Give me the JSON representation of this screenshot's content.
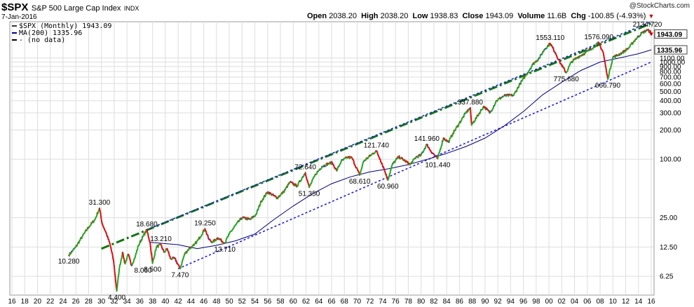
{
  "header": {
    "symbol": "$SPX",
    "name": "S&P 500 Large Cap Index",
    "exchange": "INDX",
    "date": "7-Jan-2016",
    "copyright": "@StockCharts.com",
    "ohlc": {
      "open_label": "Open",
      "open": "2038.20",
      "high_label": "High",
      "high": "2038.20",
      "low_label": "Low",
      "low": "1938.83",
      "close_label": "Close",
      "close": "1943.09",
      "volume_label": "Volume",
      "volume": "11.6B",
      "chg_label": "Chg",
      "chg": "-100.85 (-4.93%)"
    }
  },
  "legend": [
    {
      "label": "$SPX (Monthly) 1943.09",
      "color": "#333333"
    },
    {
      "label": "MA(200) 1335.96",
      "color": "#000080"
    },
    {
      "label": "- (no data)",
      "color": "#000000"
    }
  ],
  "chart_data": {
    "type": "line",
    "scale": "log",
    "ylim": [
      4,
      2600
    ],
    "xlim": [
      1916,
      2016
    ],
    "y_ticks": [
      {
        "value": 6.25,
        "label": "6.25"
      },
      {
        "value": 12.5,
        "label": "12.50"
      },
      {
        "value": 25,
        "label": "25.00"
      },
      {
        "value": 100,
        "label": "100.00"
      },
      {
        "value": 200,
        "label": "200.00"
      },
      {
        "value": 300,
        "label": "300.00"
      },
      {
        "value": 400,
        "label": "400.00"
      },
      {
        "value": 500,
        "label": "500.00"
      },
      {
        "value": 600,
        "label": "600.00"
      },
      {
        "value": 700,
        "label": "700.00"
      },
      {
        "value": 800,
        "label": "800.00"
      },
      {
        "value": 900,
        "label": "900.00"
      },
      {
        "value": 1000,
        "label": "1000.00"
      },
      {
        "value": 1100,
        "label": "1100.00"
      }
    ],
    "price_labels": [
      {
        "value": 1943.09,
        "label": "1943.09"
      },
      {
        "value": 1335.96,
        "label": "1335.96"
      }
    ],
    "x_ticks": [
      "16",
      "18",
      "20",
      "22",
      "24",
      "26",
      "28",
      "30",
      "32",
      "34",
      "36",
      "38",
      "40",
      "42",
      "44",
      "46",
      "48",
      "50",
      "52",
      "54",
      "56",
      "58",
      "60",
      "62",
      "64",
      "66",
      "68",
      "70",
      "72",
      "74",
      "76",
      "78",
      "80",
      "82",
      "84",
      "86",
      "88",
      "90",
      "92",
      "94",
      "96",
      "98",
      "00",
      "02",
      "04",
      "06",
      "08",
      "10",
      "12",
      "14",
      "16"
    ],
    "series": [
      {
        "type": "price",
        "points": [
          [
            1924.9,
            10.28
          ],
          [
            1926.0,
            12.5
          ],
          [
            1927.0,
            16
          ],
          [
            1928.0,
            20
          ],
          [
            1929.0,
            24
          ],
          [
            1929.7,
            31.3
          ],
          [
            1930.1,
            22
          ],
          [
            1930.8,
            17
          ],
          [
            1931.4,
            13
          ],
          [
            1931.9,
            9
          ],
          [
            1932.4,
            4.4
          ],
          [
            1932.8,
            7.5
          ],
          [
            1933.3,
            11
          ],
          [
            1933.7,
            8.4
          ],
          [
            1934.2,
            10.5
          ],
          [
            1934.7,
            8.06
          ],
          [
            1935.3,
            10
          ],
          [
            1935.8,
            13
          ],
          [
            1936.5,
            16
          ],
          [
            1937.1,
            18.68
          ],
          [
            1937.6,
            14
          ],
          [
            1938.0,
            8.5
          ],
          [
            1938.6,
            12.5
          ],
          [
            1939.3,
            13.21
          ],
          [
            1939.8,
            11
          ],
          [
            1940.3,
            12
          ],
          [
            1940.8,
            9.5
          ],
          [
            1941.5,
            9.5
          ],
          [
            1942.3,
            7.47
          ],
          [
            1943.0,
            10.5
          ],
          [
            1943.7,
            12
          ],
          [
            1944.5,
            13
          ],
          [
            1945.2,
            15
          ],
          [
            1946.2,
            19.25
          ],
          [
            1946.8,
            15
          ],
          [
            1947.4,
            14
          ],
          [
            1948.2,
            15.5
          ],
          [
            1949.3,
            13.71
          ],
          [
            1950.0,
            17
          ],
          [
            1951.0,
            21
          ],
          [
            1952.0,
            25
          ],
          [
            1953.3,
            24
          ],
          [
            1954.2,
            27
          ],
          [
            1955.0,
            37
          ],
          [
            1956.0,
            46
          ],
          [
            1957.5,
            40
          ],
          [
            1958.5,
            46
          ],
          [
            1959.5,
            58
          ],
          [
            1960.6,
            53
          ],
          [
            1961.5,
            66
          ],
          [
            1961.9,
            72.64
          ],
          [
            1962.5,
            51.35
          ],
          [
            1963.5,
            70
          ],
          [
            1964.5,
            84
          ],
          [
            1965.5,
            90
          ],
          [
            1966.1,
            92
          ],
          [
            1966.8,
            76
          ],
          [
            1967.5,
            95
          ],
          [
            1968.5,
            105
          ],
          [
            1969.2,
            103
          ],
          [
            1970.4,
            68.61
          ],
          [
            1971.0,
            95
          ],
          [
            1972.0,
            108
          ],
          [
            1973.0,
            121.74
          ],
          [
            1973.6,
            100
          ],
          [
            1974.2,
            80
          ],
          [
            1974.8,
            60.96
          ],
          [
            1975.5,
            88
          ],
          [
            1976.5,
            106
          ],
          [
            1977.5,
            96
          ],
          [
            1978.3,
            88
          ],
          [
            1979.2,
            105
          ],
          [
            1980.0,
            110
          ],
          [
            1980.9,
            141.96
          ],
          [
            1981.5,
            122
          ],
          [
            1982.6,
            101.44
          ],
          [
            1983.5,
            165
          ],
          [
            1984.3,
            150
          ],
          [
            1985.0,
            185
          ],
          [
            1986.0,
            235
          ],
          [
            1987.0,
            300
          ],
          [
            1987.7,
            337.88
          ],
          [
            1987.9,
            225
          ],
          [
            1988.7,
            270
          ],
          [
            1989.8,
            350
          ],
          [
            1990.8,
            300
          ],
          [
            1991.8,
            400
          ],
          [
            1993.0,
            450
          ],
          [
            1994.5,
            455
          ],
          [
            1995.5,
            600
          ],
          [
            1996.5,
            750
          ],
          [
            1997.5,
            950
          ],
          [
            1998.5,
            1100
          ],
          [
            1999.3,
            1350
          ],
          [
            2000.2,
            1553.11
          ],
          [
            2001.0,
            1250
          ],
          [
            2001.7,
            1000
          ],
          [
            2002.7,
            775.68
          ],
          [
            2003.5,
            1000
          ],
          [
            2004.5,
            1120
          ],
          [
            2005.5,
            1220
          ],
          [
            2006.5,
            1350
          ],
          [
            2007.8,
            1576.09
          ],
          [
            2008.5,
            1250
          ],
          [
            2009.2,
            666.79
          ],
          [
            2010.0,
            1120
          ],
          [
            2010.8,
            1180
          ],
          [
            2011.5,
            1250
          ],
          [
            2012.5,
            1400
          ],
          [
            2013.5,
            1700
          ],
          [
            2014.5,
            1980
          ],
          [
            2015.4,
            2134.72
          ],
          [
            2015.9,
            2043
          ],
          [
            2016.0,
            1943.09
          ]
        ]
      },
      {
        "name": "MA(200)",
        "points": [
          [
            1937.5,
            14
          ],
          [
            1942.0,
            13.2
          ],
          [
            1945.0,
            12
          ],
          [
            1948.0,
            13
          ],
          [
            1951.0,
            14.5
          ],
          [
            1954.0,
            17
          ],
          [
            1957.0,
            24
          ],
          [
            1960.0,
            33
          ],
          [
            1963.0,
            44
          ],
          [
            1966.0,
            56
          ],
          [
            1969.0,
            66
          ],
          [
            1972.0,
            74
          ],
          [
            1975.0,
            80
          ],
          [
            1978.0,
            88
          ],
          [
            1981.0,
            100
          ],
          [
            1984.0,
            115
          ],
          [
            1987.0,
            135
          ],
          [
            1990.0,
            165
          ],
          [
            1993.0,
            220
          ],
          [
            1996.0,
            310
          ],
          [
            1999.0,
            460
          ],
          [
            2002.0,
            620
          ],
          [
            2005.0,
            820
          ],
          [
            2008.0,
            1000
          ],
          [
            2011.0,
            1100
          ],
          [
            2014.0,
            1220
          ],
          [
            2016.0,
            1335.96
          ]
        ]
      }
    ],
    "trendlines": [
      {
        "style": "green-dash-dot",
        "from": [
          1930,
          12
        ],
        "to": [
          2016,
          2500
        ]
      },
      {
        "style": "blue-dotted",
        "from": [
          1937,
          18.68
        ],
        "to": [
          2016,
          2600
        ]
      },
      {
        "style": "blue-dotted",
        "from": [
          1942,
          7.47
        ],
        "to": [
          2016,
          1000
        ]
      }
    ],
    "annotations": [
      {
        "x": 1924.9,
        "y": 10.28,
        "label": "10.280",
        "pos": "below"
      },
      {
        "x": 1929.7,
        "y": 31.3,
        "label": "31.300",
        "pos": "above"
      },
      {
        "x": 1932.4,
        "y": 4.4,
        "label": "4.400",
        "pos": "below"
      },
      {
        "x": 1934.7,
        "y": 8.06,
        "label": "8.060",
        "pos": "below-right"
      },
      {
        "x": 1937.1,
        "y": 18.68,
        "label": "18.680",
        "pos": "above"
      },
      {
        "x": 1938.0,
        "y": 8.5,
        "label": "8.500",
        "pos": "below"
      },
      {
        "x": 1939.3,
        "y": 13.21,
        "label": "13.210",
        "pos": "above"
      },
      {
        "x": 1942.3,
        "y": 7.47,
        "label": "7.470",
        "pos": "below"
      },
      {
        "x": 1946.2,
        "y": 19.25,
        "label": "19.250",
        "pos": "above"
      },
      {
        "x": 1949.3,
        "y": 13.71,
        "label": "13.710",
        "pos": "below"
      },
      {
        "x": 1962.5,
        "y": 51.35,
        "label": "51.350",
        "pos": "below"
      },
      {
        "x": 1961.9,
        "y": 72.64,
        "label": "72.640",
        "pos": "above"
      },
      {
        "x": 1970.4,
        "y": 68.61,
        "label": "68.610",
        "pos": "below"
      },
      {
        "x": 1974.8,
        "y": 60.96,
        "label": "60.960",
        "pos": "below"
      },
      {
        "x": 1973.0,
        "y": 121.74,
        "label": "121.740",
        "pos": "above"
      },
      {
        "x": 1980.9,
        "y": 141.96,
        "label": "141.960",
        "pos": "above"
      },
      {
        "x": 1982.6,
        "y": 101.44,
        "label": "101.440",
        "pos": "below"
      },
      {
        "x": 1987.7,
        "y": 337.88,
        "label": "337.880",
        "pos": "above"
      },
      {
        "x": 2000.2,
        "y": 1553.11,
        "label": "1553.110",
        "pos": "above"
      },
      {
        "x": 2002.7,
        "y": 775.68,
        "label": "775.680",
        "pos": "below"
      },
      {
        "x": 2007.8,
        "y": 1576.09,
        "label": "1576.090",
        "pos": "above"
      },
      {
        "x": 2009.2,
        "y": 666.79,
        "label": "666.790",
        "pos": "below"
      },
      {
        "x": 2015.4,
        "y": 2134.72,
        "label": "2134.720",
        "pos": "above"
      }
    ],
    "colors": {
      "up": "#22aa22",
      "down": "#dd1111",
      "neutral": "#3333cc",
      "ma": "#000080",
      "green_trend": "#117711",
      "blue_trend": "#1f1fe0",
      "grid": "#dddddd",
      "close_marker": "#cc0000"
    }
  }
}
